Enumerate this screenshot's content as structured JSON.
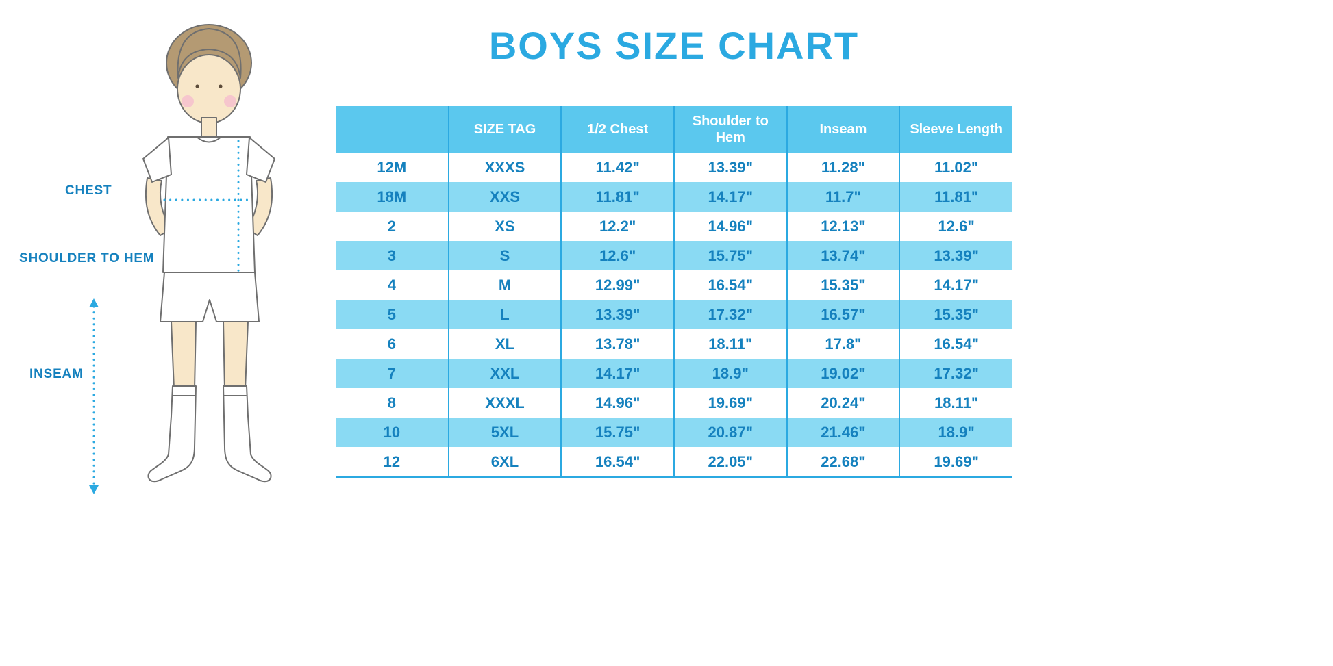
{
  "title": "BOYS SIZE CHART",
  "colors": {
    "title": "#2BA9E1",
    "label_text": "#1581BE",
    "table_text": "#1581BE",
    "header_bg": "#5BC8EE",
    "header_text": "#FFFFFF",
    "row_alt_bg": "#8ADAF3",
    "column_border": "#2BA9E1",
    "measure_line": "#2BA9E1",
    "skin": "#F8E7C9",
    "hair": "#B49A73",
    "blush": "#F6BFCE",
    "outline": "#6F6F6F"
  },
  "figure": {
    "labels": {
      "chest": "CHEST",
      "shoulder_to_hem": "SHOULDER TO HEM",
      "inseam": "INSEAM"
    }
  },
  "chart_data": {
    "type": "table",
    "title": "BOYS SIZE CHART",
    "columns": [
      "",
      "SIZE TAG",
      "1/2 Chest",
      "Shoulder to Hem",
      "Inseam",
      "Sleeve Length"
    ],
    "rows": [
      [
        "12M",
        "XXXS",
        "11.42\"",
        "13.39\"",
        "11.28\"",
        "11.02\""
      ],
      [
        "18M",
        "XXS",
        "11.81\"",
        "14.17\"",
        "11.7\"",
        "11.81\""
      ],
      [
        "2",
        "XS",
        "12.2\"",
        "14.96\"",
        "12.13\"",
        "12.6\""
      ],
      [
        "3",
        "S",
        "12.6\"",
        "15.75\"",
        "13.74\"",
        "13.39\""
      ],
      [
        "4",
        "M",
        "12.99\"",
        "16.54\"",
        "15.35\"",
        "14.17\""
      ],
      [
        "5",
        "L",
        "13.39\"",
        "17.32\"",
        "16.57\"",
        "15.35\""
      ],
      [
        "6",
        "XL",
        "13.78\"",
        "18.11\"",
        "17.8\"",
        "16.54\""
      ],
      [
        "7",
        "XXL",
        "14.17\"",
        "18.9\"",
        "19.02\"",
        "17.32\""
      ],
      [
        "8",
        "XXXL",
        "14.96\"",
        "19.69\"",
        "20.24\"",
        "18.11\""
      ],
      [
        "10",
        "5XL",
        "15.75\"",
        "20.87\"",
        "21.46\"",
        "18.9\""
      ],
      [
        "12",
        "6XL",
        "16.54\"",
        "22.05\"",
        "22.68\"",
        "19.69\""
      ]
    ]
  }
}
